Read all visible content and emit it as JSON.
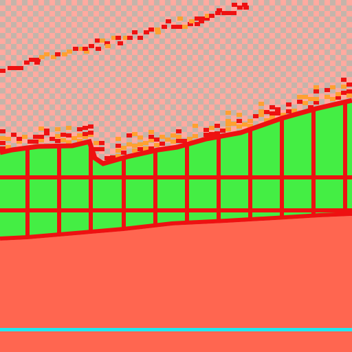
{
  "scene": {
    "colors": {
      "ground": "#ff6650",
      "wall_fill": "#44ee44",
      "grid_line": "#ee1111",
      "debris_red": "#ee1111",
      "debris_orange": "#ffa030",
      "sky_a": "#ffaaa0",
      "sky_b": "#c4b4aa",
      "baseline": "#22e8f0"
    },
    "elements": {
      "sky": "checkered-sky",
      "upper_trail": "debris-trail",
      "lower_trail": "debris-edge",
      "wall": "green-block-wall",
      "ground": "ground-floor",
      "baseline": "cyan-baseline"
    }
  }
}
